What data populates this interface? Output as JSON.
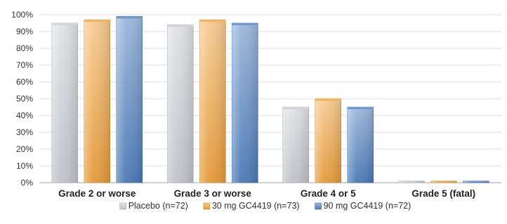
{
  "chart_data": {
    "type": "bar",
    "categories": [
      "Grade 2 or worse",
      "Grade 3 or worse",
      "Grade 4 or 5",
      "Grade 5 (fatal)"
    ],
    "series": [
      {
        "name": "Placebo (n=72)",
        "values": [
          95,
          94,
          45,
          1
        ],
        "color": "#c9ccd2"
      },
      {
        "name": "30 mg GC4419 (n=73)",
        "values": [
          97,
          97,
          50,
          1
        ],
        "color": "#f0a23c"
      },
      {
        "name": "90 mg GC4419 (n=72)",
        "values": [
          99,
          95,
          45,
          1
        ],
        "color": "#4f7fc0"
      }
    ],
    "y_ticks": [
      "0%",
      "10%",
      "20%",
      "30%",
      "40%",
      "50%",
      "60%",
      "70%",
      "80%",
      "90%",
      "100%"
    ],
    "ylim": [
      0,
      100
    ],
    "grid": true,
    "legend_position": "bottom"
  }
}
